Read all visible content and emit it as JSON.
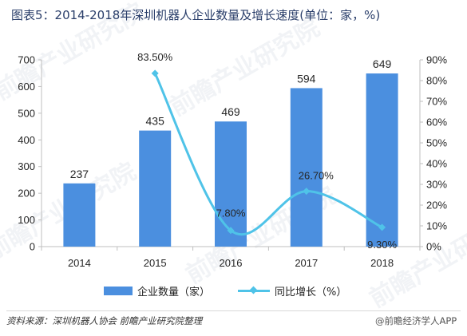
{
  "title": "图表5：2014-2018年深圳机器人企业数量及增长速度(单位：家，%)",
  "source": "资料来源：深圳机器人协会 前瞻产业研究院整理",
  "brand": "@前瞻经济学人APP",
  "watermark": "前瞻产业研究院",
  "colors": {
    "bar": "#4b8fdf",
    "line": "#4fc3e8",
    "axis": "#bfbfbf",
    "text": "#262626"
  },
  "chart_data": {
    "type": "bar",
    "categories": [
      "2014",
      "2015",
      "2016",
      "2017",
      "2018"
    ],
    "series": [
      {
        "name": "企业数量（家）",
        "type": "bar",
        "axis": "left",
        "values": [
          237,
          435,
          469,
          594,
          649
        ],
        "labels": [
          "237",
          "435",
          "469",
          "594",
          "649"
        ]
      },
      {
        "name": "同比增长（%）",
        "type": "line",
        "axis": "right",
        "values": [
          null,
          83.5,
          7.8,
          26.7,
          9.3
        ],
        "labels": [
          "",
          "83.50%",
          "7.80%",
          "26.70%",
          "9.30%"
        ]
      }
    ],
    "y_left": {
      "ylim": [
        0,
        700
      ],
      "ticks": [
        0,
        100,
        200,
        300,
        400,
        500,
        600,
        700
      ],
      "tick_labels": [
        "0",
        "100",
        "200",
        "300",
        "400",
        "500",
        "600",
        "700"
      ]
    },
    "y_right": {
      "ylim": [
        0,
        90
      ],
      "ticks": [
        0,
        10,
        20,
        30,
        40,
        50,
        60,
        70,
        80,
        90
      ],
      "tick_labels": [
        "0%",
        "10%",
        "20%",
        "30%",
        "40%",
        "50%",
        "60%",
        "70%",
        "80%",
        "90%"
      ]
    },
    "grid": false,
    "legend": "bottom"
  }
}
